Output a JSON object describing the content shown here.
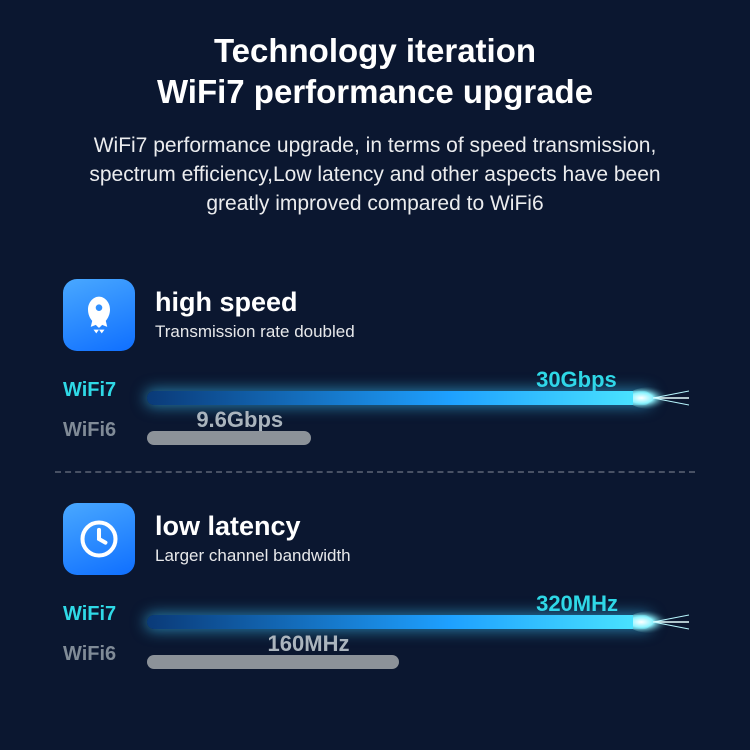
{
  "background_color": "#0b1730",
  "text_color": "#ffffff",
  "title": {
    "line1": "Technology iteration",
    "line2": "WiFi7 performance upgrade",
    "fontsize": 33
  },
  "subtitle": {
    "text": "WiFi7 performance upgrade, in terms of speed transmission, spectrum efficiency,Low latency and other aspects have been greatly improved compared to WiFi6",
    "fontsize": 21
  },
  "icon_gradient_start": "#49a8ff",
  "icon_gradient_end": "#0f6fff",
  "wifi7_label_color": "#2fd9e6",
  "wifi7_value_color": "#2fd9e6",
  "wifi6_label_color": "#808b97",
  "wifi6_value_color": "#aab4bd",
  "wifi7_bar_gradient": [
    "#0a3a78",
    "#1ea0ff",
    "#4de8ff"
  ],
  "wifi6_bar_color": "#8c9299",
  "sections": [
    {
      "icon": "rocket",
      "title": "high speed",
      "title_fontsize": 27,
      "subtitle": "Transmission rate doubled",
      "subtitle_fontsize": 17,
      "wifi7": {
        "label": "WiFi7",
        "value": "30Gbps",
        "bar_pct": 92,
        "value_pos_pct": 71
      },
      "wifi6": {
        "label": "WiFi6",
        "value": "9.6Gbps",
        "bar_pct": 30,
        "value_pos_pct": 9
      }
    },
    {
      "icon": "clock",
      "title": "low latency",
      "title_fontsize": 27,
      "subtitle": "Larger channel bandwidth",
      "subtitle_fontsize": 17,
      "wifi7": {
        "label": "WiFi7",
        "value": "320MHz",
        "bar_pct": 92,
        "value_pos_pct": 71
      },
      "wifi6": {
        "label": "WiFi6",
        "value": "160MHz",
        "bar_pct": 46,
        "value_pos_pct": 22
      }
    }
  ],
  "label_fontsize": 20,
  "value_fontsize": 22
}
